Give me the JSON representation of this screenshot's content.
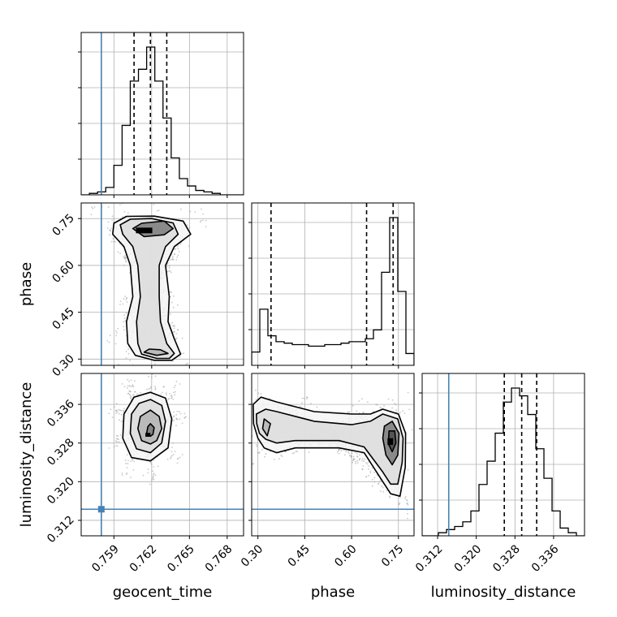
{
  "chart_data": {
    "type": "corner",
    "parameters": [
      "geocent_time",
      "phase",
      "luminosity_distance"
    ],
    "truths": {
      "geocent_time": 0.758,
      "phase": null,
      "luminosity_distance": 0.3143
    },
    "colors": {
      "truth": "#4682b4",
      "hist": "#000000",
      "grid": "#b0b0b0",
      "scatter": "#9a9a9a"
    },
    "grid": true,
    "axes": {
      "geocent_time": {
        "range": [
          0.7564,
          0.7693
        ],
        "ticks": [
          0.759,
          0.762,
          0.765,
          0.768
        ],
        "tick_labels": [
          "0.759",
          "0.762",
          "0.765",
          "0.768"
        ]
      },
      "phase": {
        "range": [
          0.28,
          0.8
        ],
        "ticks": [
          0.3,
          0.45,
          0.6,
          0.75
        ],
        "tick_labels": [
          "0.30",
          "0.45",
          "0.60",
          "0.75"
        ]
      },
      "luminosity_distance": {
        "range": [
          0.3088,
          0.3424
        ],
        "ticks": [
          0.312,
          0.32,
          0.328,
          0.336
        ],
        "tick_labels": [
          "0.312",
          "0.320",
          "0.328",
          "0.336"
        ]
      }
    },
    "histograms": {
      "geocent_time": {
        "bin_edges": [
          0.7564,
          0.75705,
          0.7577,
          0.75835,
          0.759,
          0.75965,
          0.7603,
          0.76095,
          0.7616,
          0.76225,
          0.7629,
          0.76355,
          0.7642,
          0.76485,
          0.7655,
          0.76615,
          0.7668,
          0.76745,
          0.7681,
          0.76875,
          0.7693
        ],
        "counts": [
          0,
          1,
          2,
          5,
          20,
          47,
          77,
          85,
          100,
          77,
          52,
          25,
          11,
          6,
          3,
          2,
          1,
          0,
          0,
          0
        ],
        "quantiles": [
          0.7606,
          0.7619,
          0.7632
        ]
      },
      "phase": {
        "bin_edges": [
          0.28,
          0.306,
          0.332,
          0.358,
          0.384,
          0.41,
          0.436,
          0.462,
          0.488,
          0.514,
          0.54,
          0.566,
          0.592,
          0.618,
          0.644,
          0.67,
          0.696,
          0.722,
          0.748,
          0.774,
          0.8
        ],
        "counts": [
          9,
          38,
          20,
          16,
          15,
          14,
          14,
          13,
          13,
          14,
          14,
          15,
          16,
          16,
          18,
          24,
          63,
          100,
          50,
          8
        ],
        "quantiles": [
          0.342,
          0.648,
          0.733
        ]
      },
      "luminosity_distance": {
        "bin_edges": [
          0.3088,
          0.31048,
          0.31216,
          0.31384,
          0.31552,
          0.3172,
          0.31888,
          0.32056,
          0.32224,
          0.32392,
          0.3256,
          0.32728,
          0.32896,
          0.33064,
          0.33232,
          0.334,
          0.33568,
          0.33736,
          0.33904,
          0.34072,
          0.3424
        ],
        "counts": [
          0,
          0,
          2,
          4,
          6,
          9,
          16,
          33,
          48,
          66,
          86,
          95,
          90,
          78,
          56,
          37,
          16,
          5,
          2,
          0
        ],
        "quantiles": [
          0.3258,
          0.3294,
          0.3325
        ]
      }
    },
    "pairs": [
      {
        "x": "geocent_time",
        "y": "phase",
        "contours": [
          [
            [
              0.7607,
              0.312
            ],
            [
              0.7622,
              0.296
            ],
            [
              0.7636,
              0.296
            ],
            [
              0.7643,
              0.316
            ],
            [
              0.7638,
              0.365
            ],
            [
              0.7633,
              0.42
            ],
            [
              0.7634,
              0.5
            ],
            [
              0.7631,
              0.6
            ],
            [
              0.7638,
              0.66
            ],
            [
              0.7651,
              0.7
            ],
            [
              0.7645,
              0.742
            ],
            [
              0.7622,
              0.758
            ],
            [
              0.76,
              0.757
            ],
            [
              0.759,
              0.735
            ],
            [
              0.7589,
              0.7
            ],
            [
              0.7598,
              0.66
            ],
            [
              0.7603,
              0.6
            ],
            [
              0.7605,
              0.5
            ],
            [
              0.76,
              0.42
            ],
            [
              0.7601,
              0.35
            ]
          ],
          [
            [
              0.7612,
              0.316
            ],
            [
              0.7624,
              0.302
            ],
            [
              0.7634,
              0.302
            ],
            [
              0.7638,
              0.318
            ],
            [
              0.7632,
              0.35
            ],
            [
              0.7627,
              0.42
            ],
            [
              0.7626,
              0.5
            ],
            [
              0.7626,
              0.6
            ],
            [
              0.7631,
              0.66
            ],
            [
              0.7641,
              0.7
            ],
            [
              0.7637,
              0.736
            ],
            [
              0.762,
              0.75
            ],
            [
              0.7603,
              0.748
            ],
            [
              0.7595,
              0.73
            ],
            [
              0.7597,
              0.7
            ],
            [
              0.7605,
              0.66
            ],
            [
              0.7609,
              0.6
            ],
            [
              0.7611,
              0.5
            ],
            [
              0.7608,
              0.42
            ],
            [
              0.7609,
              0.35
            ]
          ],
          [
            [
              0.7614,
              0.322
            ],
            [
              0.7624,
              0.312
            ],
            [
              0.7633,
              0.318
            ],
            [
              0.7627,
              0.33
            ],
            [
              0.7618,
              0.332
            ]
          ],
          [
            [
              0.7605,
              0.718
            ],
            [
              0.7612,
              0.735
            ],
            [
              0.763,
              0.742
            ],
            [
              0.7637,
              0.718
            ],
            [
              0.763,
              0.698
            ],
            [
              0.7614,
              0.692
            ]
          ]
        ],
        "dense_cells": [
          {
            "x": 0.7614,
            "y": 0.712,
            "w": 0.0013,
            "h": 0.018
          }
        ],
        "truth_x": 0.758,
        "truth_y": null
      },
      {
        "x": "geocent_time",
        "y": "luminosity_distance",
        "contours": [
          [
            [
              0.7619,
              0.3385
            ],
            [
              0.7631,
              0.3373
            ],
            [
              0.7636,
              0.333
            ],
            [
              0.7633,
              0.327
            ],
            [
              0.7619,
              0.3243
            ],
            [
              0.7604,
              0.325
            ],
            [
              0.7597,
              0.329
            ],
            [
              0.7598,
              0.334
            ],
            [
              0.7606,
              0.3375
            ]
          ],
          [
            [
              0.7619,
              0.337
            ],
            [
              0.7628,
              0.3358
            ],
            [
              0.7631,
              0.3325
            ],
            [
              0.7628,
              0.328
            ],
            [
              0.7619,
              0.326
            ],
            [
              0.7608,
              0.3268
            ],
            [
              0.7603,
              0.33
            ],
            [
              0.7604,
              0.334
            ],
            [
              0.761,
              0.3362
            ]
          ],
          [
            [
              0.7619,
              0.3348
            ],
            [
              0.7626,
              0.3335
            ],
            [
              0.7628,
              0.331
            ],
            [
              0.7624,
              0.3285
            ],
            [
              0.7619,
              0.3278
            ],
            [
              0.7612,
              0.3285
            ],
            [
              0.7609,
              0.331
            ],
            [
              0.7611,
              0.3335
            ]
          ],
          [
            [
              0.7619,
              0.332
            ],
            [
              0.7622,
              0.3312
            ],
            [
              0.7621,
              0.3298
            ],
            [
              0.7619,
              0.3294
            ],
            [
              0.7616,
              0.33
            ],
            [
              0.7617,
              0.3314
            ]
          ]
        ],
        "dense_cells": [
          {
            "x": 0.7617,
            "y": 0.3297,
            "w": 0.0004,
            "h": 0.0008
          }
        ],
        "truth_x": 0.758,
        "truth_y": 0.3143
      },
      {
        "x": "phase",
        "y": "luminosity_distance",
        "contours": [
          [
            [
              0.285,
              0.336
            ],
            [
              0.31,
              0.3375
            ],
            [
              0.36,
              0.3365
            ],
            [
              0.48,
              0.3345
            ],
            [
              0.6,
              0.334
            ],
            [
              0.66,
              0.334
            ],
            [
              0.7,
              0.335
            ],
            [
              0.75,
              0.334
            ],
            [
              0.773,
              0.33
            ],
            [
              0.772,
              0.323
            ],
            [
              0.755,
              0.317
            ],
            [
              0.725,
              0.3175
            ],
            [
              0.7,
              0.32
            ],
            [
              0.64,
              0.326
            ],
            [
              0.56,
              0.327
            ],
            [
              0.42,
              0.327
            ],
            [
              0.36,
              0.326
            ],
            [
              0.32,
              0.327
            ],
            [
              0.3,
              0.329
            ],
            [
              0.286,
              0.332
            ]
          ],
          [
            [
              0.295,
              0.334
            ],
            [
              0.325,
              0.335
            ],
            [
              0.36,
              0.3345
            ],
            [
              0.48,
              0.3325
            ],
            [
              0.6,
              0.3318
            ],
            [
              0.66,
              0.3325
            ],
            [
              0.7,
              0.334
            ],
            [
              0.748,
              0.333
            ],
            [
              0.765,
              0.329
            ],
            [
              0.762,
              0.324
            ],
            [
              0.748,
              0.3195
            ],
            [
              0.725,
              0.3195
            ],
            [
              0.7,
              0.322
            ],
            [
              0.64,
              0.3272
            ],
            [
              0.56,
              0.3285
            ],
            [
              0.42,
              0.3285
            ],
            [
              0.36,
              0.328
            ],
            [
              0.325,
              0.3288
            ],
            [
              0.305,
              0.33
            ],
            [
              0.296,
              0.332
            ]
          ],
          [
            [
              0.32,
              0.333
            ],
            [
              0.34,
              0.332
            ],
            [
              0.33,
              0.3295
            ],
            [
              0.315,
              0.331
            ]
          ],
          [
            [
              0.705,
              0.3315
            ],
            [
              0.73,
              0.3325
            ],
            [
              0.752,
              0.33
            ],
            [
              0.748,
              0.3255
            ],
            [
              0.73,
              0.3235
            ],
            [
              0.71,
              0.3255
            ],
            [
              0.7,
              0.329
            ]
          ],
          [
            [
              0.72,
              0.3305
            ],
            [
              0.738,
              0.3305
            ],
            [
              0.742,
              0.328
            ],
            [
              0.73,
              0.3262
            ],
            [
              0.718,
              0.3278
            ]
          ]
        ],
        "dense_cells": [
          {
            "x": 0.724,
            "y": 0.3283,
            "w": 0.018,
            "h": 0.0014
          }
        ],
        "truth_x": null,
        "truth_y": 0.3143
      }
    ]
  }
}
